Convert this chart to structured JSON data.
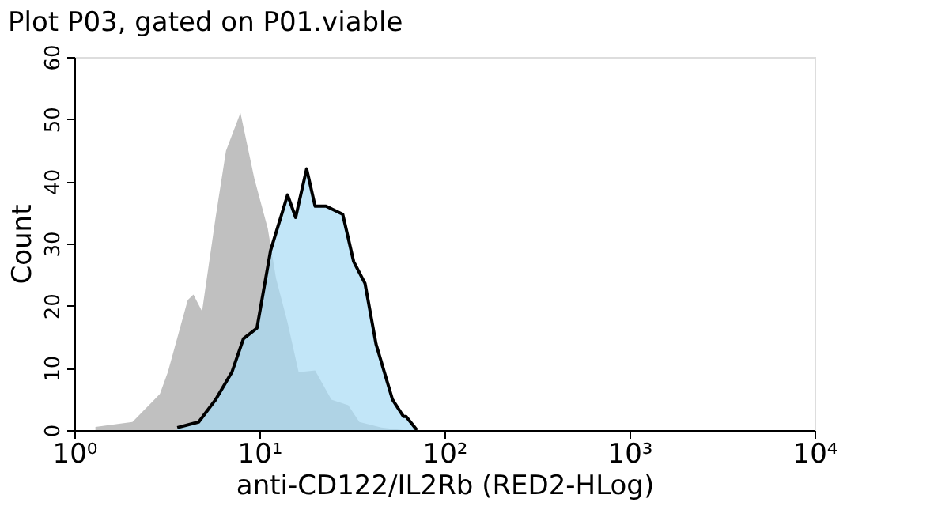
{
  "chart_data": {
    "type": "area",
    "title": "Plot P03, gated on P01.viable",
    "xlabel": "anti-CD122/IL2Rb (RED2-HLog)",
    "ylabel": "Count",
    "log": "x",
    "xlim": [
      1,
      10000
    ],
    "xticks": [
      {
        "value": 1,
        "label": "10⁰"
      },
      {
        "value": 10,
        "label": "10¹"
      },
      {
        "value": 100,
        "label": "10²"
      },
      {
        "value": 1000,
        "label": "10³"
      },
      {
        "value": 10000,
        "label": "10⁴"
      }
    ],
    "ylim": [
      0,
      60
    ],
    "yticks": [
      0,
      10,
      20,
      30,
      40,
      50,
      60
    ],
    "grid": false,
    "series": [
      {
        "color": "#c0c0c0",
        "x": [
          1.3,
          2.06,
          2.9,
          3.2,
          4.1,
          4.4,
          4.9,
          5.8,
          6.6,
          7.9,
          9.4,
          11.1,
          12.3,
          14.2,
          16.3,
          20,
          24.5,
          30.2,
          34.7,
          45.6,
          60
        ],
        "values": [
          0.5,
          1.3,
          5.8,
          9.3,
          20.9,
          21.8,
          19.1,
          34.2,
          44.9,
          51,
          40.4,
          32.4,
          24.4,
          17.3,
          9.3,
          9.6,
          4.9,
          4,
          1.3,
          0.4,
          0
        ]
      },
      {
        "color": "#a8dcf5",
        "x": [
          3.6,
          4.7,
          5.8,
          7.1,
          8.2,
          9.7,
          11.5,
          14.2,
          15.7,
          18,
          20,
          22.9,
          28.2,
          32.3,
          37.2,
          42.7,
          52.4,
          60,
          62,
          71
        ],
        "values": [
          0.4,
          1.3,
          4.9,
          9.3,
          14.7,
          16.4,
          28.9,
          37.8,
          34.2,
          42,
          36,
          36,
          34.7,
          27.1,
          23.6,
          13.8,
          4.9,
          2.2,
          2.2,
          0
        ]
      }
    ]
  }
}
